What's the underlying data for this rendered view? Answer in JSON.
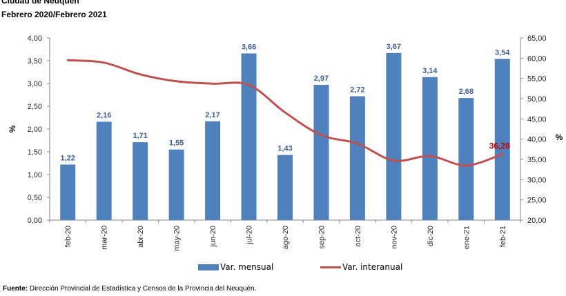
{
  "header": {
    "title": "Ciudad de Neuquén",
    "subtitle": "Febrero 2020/Febrero 2021"
  },
  "legend": {
    "bar_label": "Var. mensual",
    "line_label": "Var. interanual"
  },
  "source": {
    "label": "Fuente:",
    "text": "Dirección Provincial de Estadística y Censos de la Provincia del Neuquén."
  },
  "chart_data": {
    "type": "bar",
    "title": "Ciudad de Neuquén — Febrero 2020/Febrero 2021",
    "xlabel": "",
    "ylabel": "%",
    "y2label": "%",
    "categories": [
      "feb-20",
      "mar-20",
      "abr-20",
      "may-20",
      "jun-20",
      "jul-20",
      "ago-20",
      "sep-20",
      "oct-20",
      "nov-20",
      "dic-20",
      "ene-21",
      "feb-21"
    ],
    "series": [
      {
        "name": "Var. mensual",
        "type": "bar",
        "axis": "left",
        "color": "#4f81bd",
        "values": [
          1.22,
          2.16,
          1.71,
          1.55,
          2.17,
          3.66,
          1.43,
          2.97,
          2.72,
          3.67,
          3.14,
          2.68,
          3.54
        ],
        "data_labels": [
          "1,22",
          "2,16",
          "1,71",
          "1,55",
          "2,17",
          "3,66",
          "1,43",
          "2,97",
          "2,72",
          "3,67",
          "3,14",
          "2,68",
          "3,54"
        ]
      },
      {
        "name": "Var. interanual",
        "type": "line",
        "axis": "right",
        "color": "#c0504d",
        "values": [
          59.5,
          58.9,
          56.0,
          54.3,
          53.7,
          53.4,
          46.6,
          41.0,
          38.9,
          34.7,
          35.8,
          33.5,
          36.28
        ],
        "data_labels": {
          "12": "36,28"
        }
      }
    ],
    "ylim": [
      0,
      4
    ],
    "y2lim": [
      20,
      65
    ],
    "yticks": [
      "0,00",
      "0,50",
      "1,00",
      "1,50",
      "2,00",
      "2,50",
      "3,00",
      "3,50",
      "4,00"
    ],
    "y2ticks": [
      "20,00",
      "25,00",
      "30,00",
      "35,00",
      "40,00",
      "45,00",
      "50,00",
      "55,00",
      "60,00",
      "65,00"
    ],
    "grid": false,
    "legend_position": "bottom"
  }
}
